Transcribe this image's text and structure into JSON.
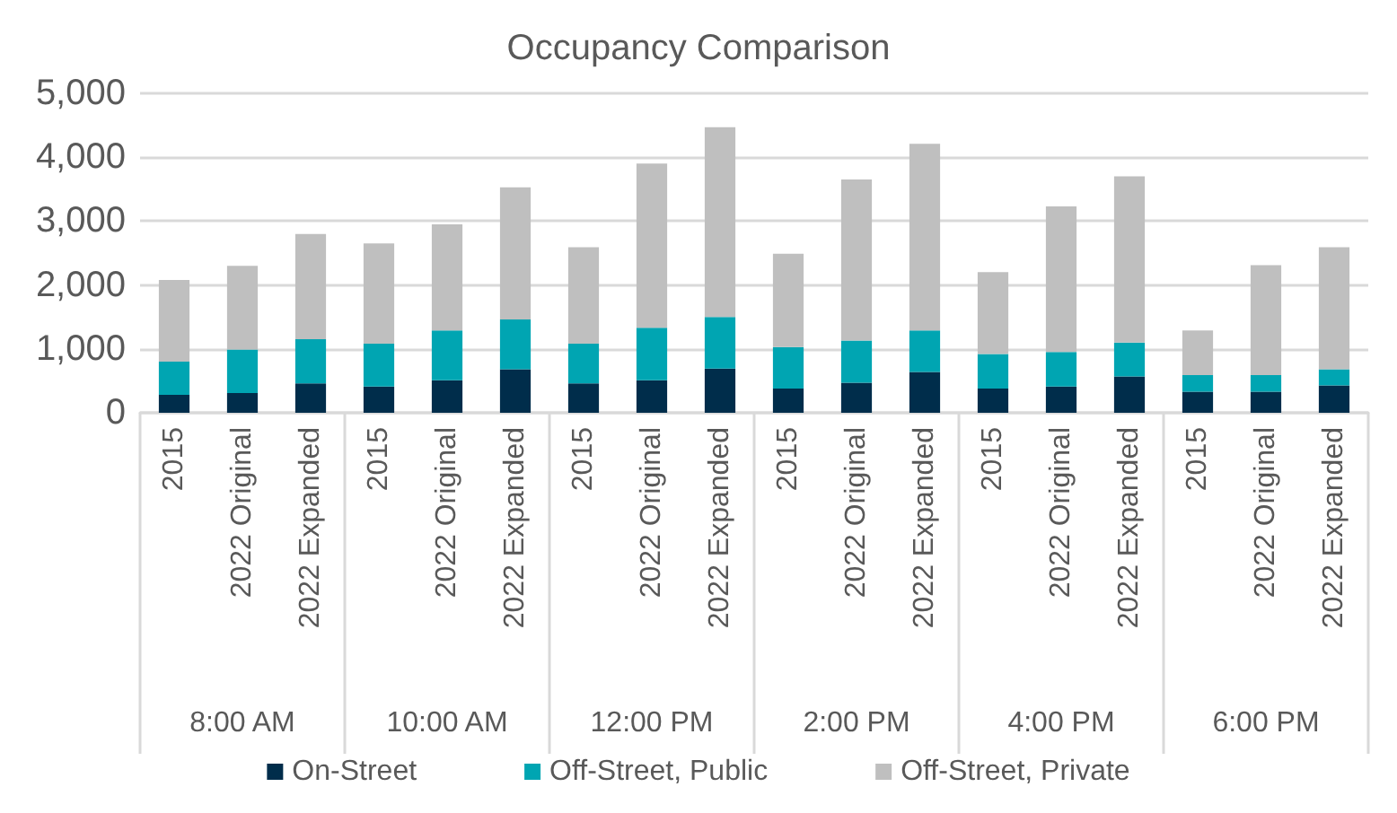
{
  "chart_data": {
    "type": "bar",
    "title": "Occupancy Comparison",
    "stacked": true,
    "categories": [
      "2015",
      "2022 Original",
      "2022 Expanded",
      "2015",
      "2022 Original",
      "2022 Expanded",
      "2015",
      "2022 Original",
      "2022 Expanded",
      "2015",
      "2022 Original",
      "2022 Expanded",
      "2015",
      "2022 Original",
      "2022 Expanded",
      "2015",
      "2022 Original",
      "2022 Expanded"
    ],
    "annotations": [
      "8:00 AM",
      "10:00 AM",
      "12:00 PM",
      "2:00 PM",
      "4:00 PM",
      "6:00 PM"
    ],
    "series": [
      {
        "name": "On-Street",
        "color": "#002d4b",
        "values": [
          280,
          310,
          460,
          410,
          510,
          680,
          460,
          510,
          690,
          380,
          470,
          640,
          380,
          410,
          570,
          330,
          330,
          430
        ]
      },
      {
        "name": "Off-Street, Public",
        "color": "#00a5b2",
        "values": [
          520,
          680,
          690,
          670,
          780,
          780,
          620,
          820,
          810,
          650,
          660,
          650,
          540,
          540,
          530,
          260,
          260,
          250
        ]
      },
      {
        "name": "Off-Street, Private",
        "color": "#bfbfbf",
        "values": [
          1280,
          1310,
          1650,
          1570,
          1660,
          2070,
          1510,
          2570,
          2970,
          1460,
          2520,
          2920,
          1280,
          2280,
          2600,
          700,
          1720,
          1910
        ]
      }
    ],
    "ylim": [
      0,
      5000
    ],
    "yticks": [
      0,
      {
        "value": 1000,
        "label": "1,000"
      },
      {
        "value": 2000,
        "label": "2,000"
      },
      {
        "value": 3000,
        "label": "3,000"
      },
      {
        "value": 4000,
        "label": "4,000"
      },
      {
        "value": 5000,
        "label": "5,000"
      }
    ],
    "grid": "y",
    "legend": "bottom"
  }
}
